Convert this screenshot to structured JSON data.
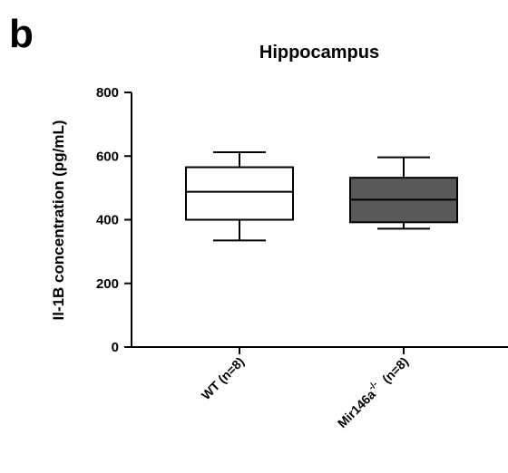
{
  "panel_label": "b",
  "chart_data": {
    "type": "box",
    "title": "Hippocampus",
    "xlabel": "",
    "ylabel": "Il-1B concentration (pg/mL)",
    "ylim": [
      0,
      800
    ],
    "yticks": [
      "0",
      "200",
      "400",
      "600",
      "800"
    ],
    "grid": false,
    "categories": [
      {
        "name": "WT",
        "sup": "",
        "suffix": "(n=8)"
      },
      {
        "name": "Mir146a",
        "sup": "-/-",
        "suffix": "(n=8)"
      }
    ],
    "boxes": [
      {
        "min": 335,
        "q1": 400,
        "median": 488,
        "q3": 565,
        "max": 612,
        "fill": "#ffffff"
      },
      {
        "min": 372,
        "q1": 392,
        "median": 463,
        "q3": 532,
        "max": 596,
        "fill": "#595959"
      }
    ]
  }
}
